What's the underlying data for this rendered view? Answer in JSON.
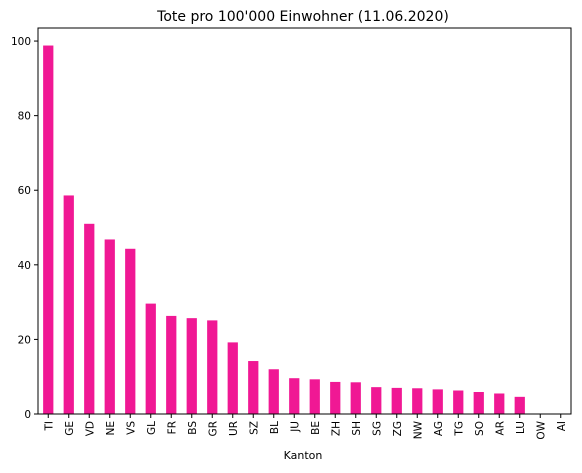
{
  "chart_data": {
    "type": "bar",
    "title": "Tote pro 100'000 Einwohner (11.06.2020)",
    "xlabel": "Kanton",
    "ylabel": "",
    "ylim": [
      0,
      103.5
    ],
    "yticks": [
      0,
      20,
      40,
      60,
      80,
      100
    ],
    "categories": [
      "TI",
      "GE",
      "VD",
      "NE",
      "VS",
      "GL",
      "FR",
      "BS",
      "GR",
      "UR",
      "SZ",
      "BL",
      "JU",
      "BE",
      "ZH",
      "SH",
      "SG",
      "ZG",
      "NW",
      "AG",
      "TG",
      "SO",
      "AR",
      "LU",
      "OW",
      "AI"
    ],
    "values": [
      98.8,
      58.6,
      51.0,
      46.8,
      44.3,
      29.6,
      26.3,
      25.7,
      25.1,
      19.2,
      14.2,
      12.0,
      9.6,
      9.3,
      8.6,
      8.5,
      7.2,
      7.0,
      6.9,
      6.6,
      6.3,
      5.9,
      5.5,
      4.6,
      0,
      0
    ],
    "bar_color": "#f01894",
    "grid": false,
    "legend": "none"
  }
}
